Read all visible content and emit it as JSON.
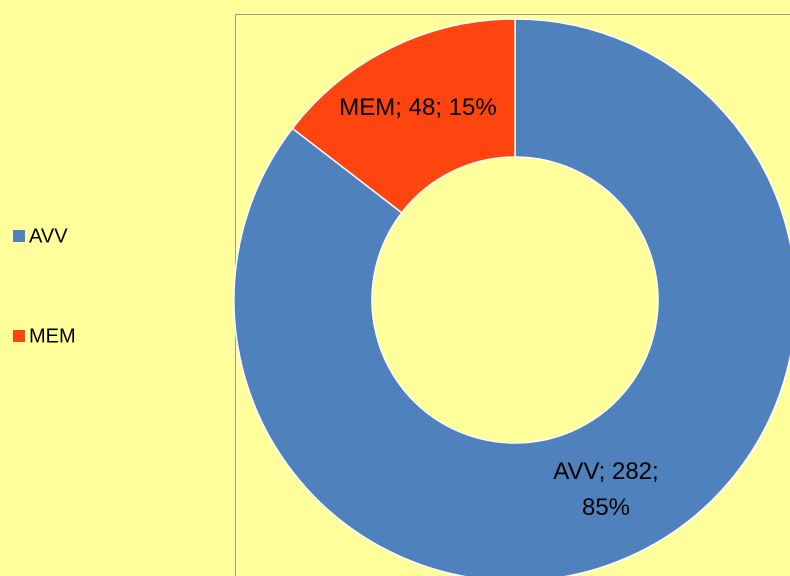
{
  "chart_data": {
    "type": "donut",
    "categories": [
      "AVV",
      "MEM"
    ],
    "values": [
      282,
      48
    ],
    "value_labels": [
      "AVV; 282; 85%",
      "MEM; 48; 15%"
    ],
    "colors": [
      "#4f81bd",
      "#ff450f"
    ],
    "legend": "left"
  }
}
